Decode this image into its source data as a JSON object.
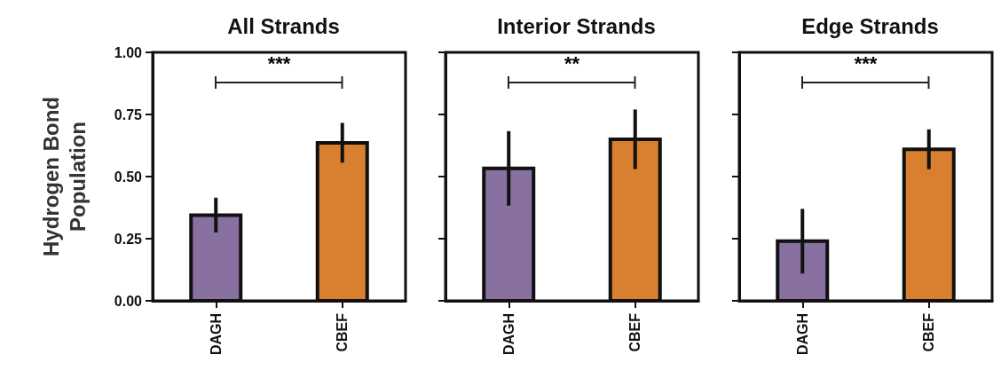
{
  "chart_data": [
    {
      "type": "bar",
      "title": "All Strands",
      "ylabel": "Hydrogen Bond\nPopulation",
      "categories": [
        "DAGH",
        "CBEF"
      ],
      "values": [
        0.345,
        0.636
      ],
      "colors": [
        "#8870a0",
        "#d97f30"
      ],
      "errors": [
        0.07,
        0.08
      ],
      "ylim": [
        0,
        1
      ],
      "yticks": [
        {
          "value": 0,
          "label": "0.00"
        },
        {
          "value": 0.25,
          "label": "0.25"
        },
        {
          "value": 0.5,
          "label": "0.50"
        },
        {
          "value": 0.75,
          "label": "0.75"
        },
        {
          "value": 1,
          "label": "1.00"
        }
      ],
      "annotations": [
        "***"
      ]
    },
    {
      "type": "bar",
      "title": "Interior Strands",
      "categories": [
        "DAGH",
        "CBEF"
      ],
      "values": [
        0.533,
        0.65
      ],
      "colors": [
        "#8870a0",
        "#d97f30"
      ],
      "errors": [
        0.15,
        0.12
      ],
      "ylim": [
        0,
        1
      ],
      "yticks": [
        {
          "value": 0,
          "label": null
        },
        {
          "value": 0.25,
          "label": null
        },
        {
          "value": 0.5,
          "label": null
        },
        {
          "value": 0.75,
          "label": null
        },
        {
          "value": 1,
          "label": null
        }
      ],
      "tick_labels": "x",
      "annotations": [
        "**"
      ]
    },
    {
      "type": "bar",
      "title": "Edge Strands",
      "categories": [
        "DAGH",
        "CBEF"
      ],
      "values": [
        0.24,
        0.61
      ],
      "colors": [
        "#8870a0",
        "#d97f30"
      ],
      "errors": [
        0.13,
        0.08
      ],
      "ylim": [
        0,
        1
      ],
      "yticks": [
        {
          "value": 0,
          "label": null
        },
        {
          "value": 0.25,
          "label": null
        },
        {
          "value": 0.5,
          "label": null
        },
        {
          "value": 0.75,
          "label": null
        },
        {
          "value": 1,
          "label": null
        }
      ],
      "tick_labels": "x",
      "annotations": [
        "***"
      ]
    }
  ]
}
